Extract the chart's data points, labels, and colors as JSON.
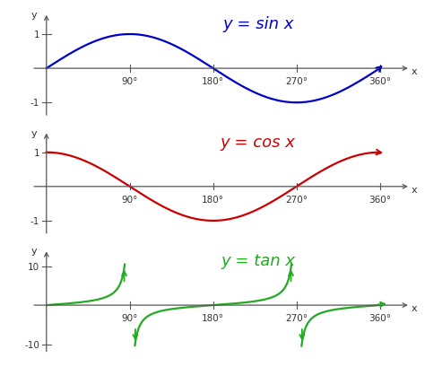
{
  "bg_color": "#ffffff",
  "panel_bg": "#f5f5f5",
  "sin_color": "#0000cc",
  "cos_color": "#cc0000",
  "tan_color": "#22aa22",
  "title_sin": "y = sin x",
  "title_cos": "y = cos x",
  "title_tan": "y = tan x",
  "title_fontsize": 13,
  "axis_label_fontsize": 8,
  "tick_fontsize": 7.5,
  "x_ticks_deg": [
    90,
    180,
    270,
    360
  ],
  "sin_ylim": [
    -1.5,
    1.7
  ],
  "cos_ylim": [
    -1.5,
    1.7
  ],
  "tan_ylim": [
    -13,
    15
  ],
  "tan_clip": 10.5,
  "xlim": [
    -18,
    395
  ]
}
